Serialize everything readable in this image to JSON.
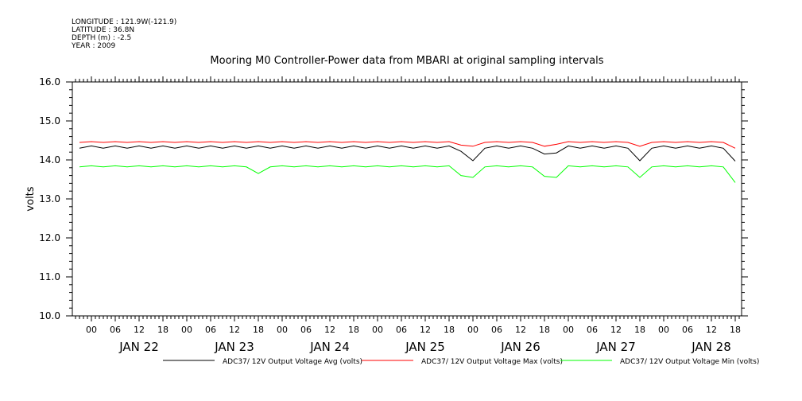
{
  "meta": {
    "longitude": "LONGITUDE : 121.9W(-121.9)",
    "latitude": "LATITUDE : 36.8N",
    "depth": "DEPTH (m) : -2.5",
    "year": "YEAR : 2009"
  },
  "chart_data": {
    "type": "line",
    "title": "Mooring M0 Controller-Power data from MBARI at original sampling intervals",
    "ylabel": "volts",
    "ylim": [
      10.0,
      16.0
    ],
    "yticks": [
      "10.0",
      "11.0",
      "12.0",
      "13.0",
      "14.0",
      "15.0",
      "16.0"
    ],
    "xlim_hours_from_jan22_00": [
      -4.8,
      163.6
    ],
    "hour_labels": [
      "00",
      "06",
      "12",
      "18"
    ],
    "day_labels": [
      "JAN 22",
      "JAN 23",
      "JAN 24",
      "JAN 25",
      "JAN 26",
      "JAN 27",
      "JAN 28"
    ],
    "x_hours_start": -3,
    "x_hours_step": 3,
    "series": [
      {
        "name": "ADC37/ 12V Output Voltage Avg (volts)",
        "color": "#000000",
        "values": [
          14.3,
          14.36,
          14.3,
          14.36,
          14.3,
          14.36,
          14.3,
          14.36,
          14.3,
          14.36,
          14.3,
          14.36,
          14.3,
          14.36,
          14.3,
          14.36,
          14.3,
          14.36,
          14.3,
          14.36,
          14.3,
          14.36,
          14.3,
          14.36,
          14.3,
          14.36,
          14.3,
          14.36,
          14.3,
          14.36,
          14.3,
          14.36,
          14.22,
          13.98,
          14.3,
          14.36,
          14.3,
          14.36,
          14.3,
          14.15,
          14.18,
          14.36,
          14.3,
          14.36,
          14.3,
          14.36,
          14.3,
          13.98,
          14.3,
          14.36,
          14.3,
          14.36,
          14.3,
          14.36,
          14.3,
          13.97
        ]
      },
      {
        "name": "ADC37/ 12V Output Voltage Max (volts)",
        "color": "#ff0000",
        "values": [
          14.45,
          14.47,
          14.45,
          14.47,
          14.45,
          14.47,
          14.45,
          14.47,
          14.45,
          14.47,
          14.45,
          14.47,
          14.45,
          14.47,
          14.45,
          14.47,
          14.45,
          14.47,
          14.45,
          14.47,
          14.45,
          14.47,
          14.45,
          14.47,
          14.45,
          14.47,
          14.45,
          14.47,
          14.45,
          14.47,
          14.45,
          14.47,
          14.38,
          14.35,
          14.45,
          14.47,
          14.45,
          14.47,
          14.45,
          14.35,
          14.4,
          14.47,
          14.45,
          14.47,
          14.45,
          14.47,
          14.45,
          14.35,
          14.45,
          14.47,
          14.45,
          14.47,
          14.45,
          14.47,
          14.45,
          14.3
        ]
      },
      {
        "name": "ADC37/ 12V Output Voltage Min (volts)",
        "color": "#00ff00",
        "values": [
          13.82,
          13.85,
          13.82,
          13.85,
          13.82,
          13.85,
          13.82,
          13.85,
          13.82,
          13.85,
          13.82,
          13.85,
          13.82,
          13.85,
          13.82,
          13.65,
          13.82,
          13.85,
          13.82,
          13.85,
          13.82,
          13.85,
          13.82,
          13.85,
          13.82,
          13.85,
          13.82,
          13.85,
          13.82,
          13.85,
          13.82,
          13.85,
          13.6,
          13.55,
          13.82,
          13.85,
          13.82,
          13.85,
          13.82,
          13.58,
          13.55,
          13.85,
          13.82,
          13.85,
          13.82,
          13.85,
          13.82,
          13.55,
          13.82,
          13.85,
          13.82,
          13.85,
          13.82,
          13.85,
          13.82,
          13.42
        ]
      }
    ]
  }
}
